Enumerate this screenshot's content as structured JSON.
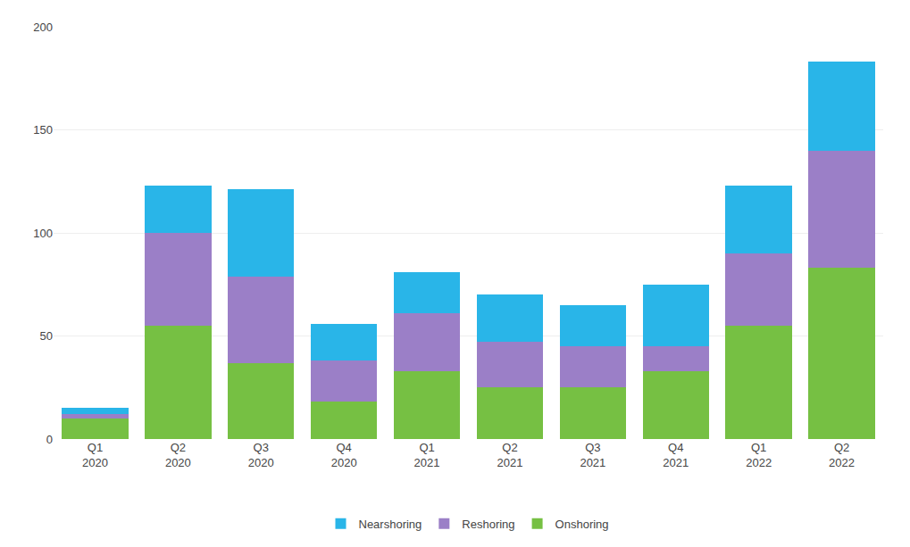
{
  "chart_data": {
    "type": "bar",
    "stacked": true,
    "categories": [
      "Q1\n2020",
      "Q2\n2020",
      "Q3\n2020",
      "Q4\n2020",
      "Q1\n2021",
      "Q2\n2021",
      "Q3\n2021",
      "Q4\n2021",
      "Q1\n2022",
      "Q2\n2022"
    ],
    "series": [
      {
        "name": "Onshoring",
        "color": "#76c043",
        "values": [
          10,
          55,
          37,
          18,
          33,
          25,
          25,
          33,
          55,
          83
        ]
      },
      {
        "name": "Reshoring",
        "color": "#9b7fc7",
        "values": [
          2,
          45,
          42,
          20,
          28,
          22,
          20,
          12,
          35,
          57
        ]
      },
      {
        "name": "Nearshoring",
        "color": "#29b5e8",
        "values": [
          3,
          23,
          42,
          18,
          20,
          23,
          20,
          30,
          33,
          43
        ]
      }
    ],
    "ylim": [
      0,
      200
    ],
    "yticks": [
      0,
      50,
      100,
      150,
      200
    ],
    "grid": true,
    "legend": "bottom"
  }
}
